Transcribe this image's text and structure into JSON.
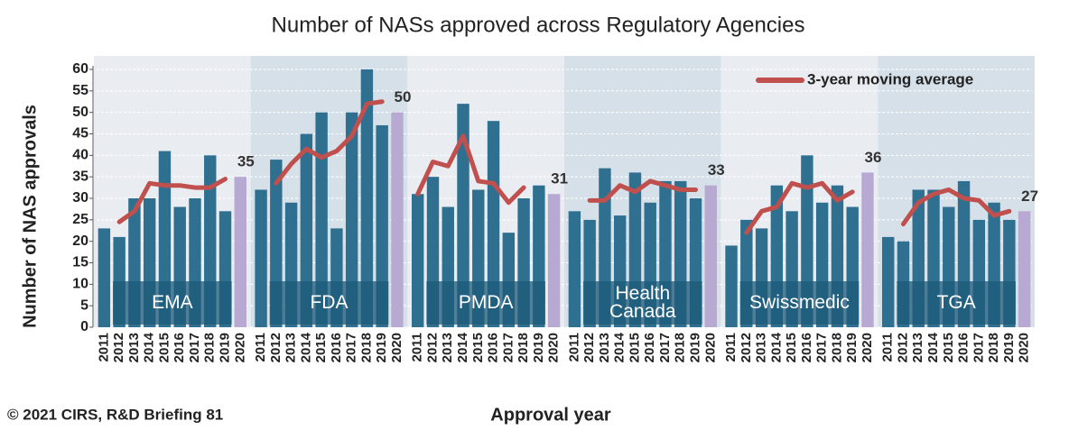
{
  "chart_data": {
    "type": "bar",
    "title": "Number of NASs approved across Regulatory Agencies",
    "y_label": "Number of NAS approvals",
    "x_label": "Approval year",
    "source": "© 2021 CIRS, R&D Briefing 81",
    "legend_label": "3-year moving average",
    "bar_color": "#2f6f8f",
    "last_bar_color": "#b8a9d2",
    "line_color": "#c0504d",
    "ylim": [
      0,
      60
    ],
    "yticks": [
      0,
      5,
      10,
      15,
      20,
      25,
      30,
      35,
      40,
      45,
      50,
      55,
      60
    ],
    "grid": true,
    "panels": [
      {
        "name": "EMA",
        "categories": [
          "2011",
          "2012",
          "2013",
          "2014",
          "2015",
          "2016",
          "2017",
          "2018",
          "2019",
          "2020"
        ],
        "values": [
          23,
          21,
          30,
          30,
          41,
          28,
          30,
          40,
          27,
          35
        ],
        "moving_average": [
          null,
          24.5,
          27,
          33.5,
          33,
          33,
          32.5,
          32.5,
          34.5,
          null
        ]
      },
      {
        "name": "FDA",
        "categories": [
          "2011",
          "2012",
          "2013",
          "2014",
          "2015",
          "2016",
          "2017",
          "2018",
          "2019",
          "2020"
        ],
        "values": [
          32,
          39,
          29,
          45,
          50,
          23,
          50,
          60,
          47,
          50
        ],
        "moving_average": [
          null,
          33.5,
          38,
          41.5,
          39.5,
          41,
          44.5,
          52,
          52.5,
          null
        ]
      },
      {
        "name": "PMDA",
        "categories": [
          "2011",
          "2012",
          "2013",
          "2014",
          "2015",
          "2016",
          "2017",
          "2018",
          "2019",
          "2020"
        ],
        "values": [
          31,
          35,
          28,
          52,
          32,
          48,
          22,
          30,
          33,
          31
        ],
        "moving_average": [
          31,
          38.5,
          37.5,
          44.5,
          34,
          33.5,
          29,
          32.5,
          null,
          null
        ]
      },
      {
        "name": "Health Canada",
        "categories": [
          "2011",
          "2012",
          "2013",
          "2014",
          "2015",
          "2016",
          "2017",
          "2018",
          "2019",
          "2020"
        ],
        "values": [
          27,
          25,
          37,
          26,
          36,
          29,
          34,
          34,
          30,
          33
        ],
        "moving_average": [
          null,
          29.5,
          29.5,
          33,
          31.5,
          34,
          33,
          32,
          32,
          null
        ]
      },
      {
        "name": "Swissmedic",
        "categories": [
          "2011",
          "2012",
          "2013",
          "2014",
          "2015",
          "2016",
          "2017",
          "2018",
          "2019",
          "2020"
        ],
        "values": [
          19,
          25,
          23,
          33,
          27,
          40,
          29,
          33,
          28,
          36
        ],
        "moving_average": [
          null,
          22,
          27,
          28,
          33.5,
          32.5,
          33.5,
          29.5,
          31.5,
          null
        ]
      },
      {
        "name": "TGA",
        "categories": [
          "2011",
          "2012",
          "2013",
          "2014",
          "2015",
          "2016",
          "2017",
          "2018",
          "2019",
          "2020"
        ],
        "values": [
          21,
          20,
          32,
          32,
          28,
          34,
          25,
          29,
          25,
          27
        ],
        "moving_average": [
          null,
          24,
          29,
          31,
          32,
          30,
          29.5,
          26,
          27,
          null
        ]
      }
    ]
  }
}
